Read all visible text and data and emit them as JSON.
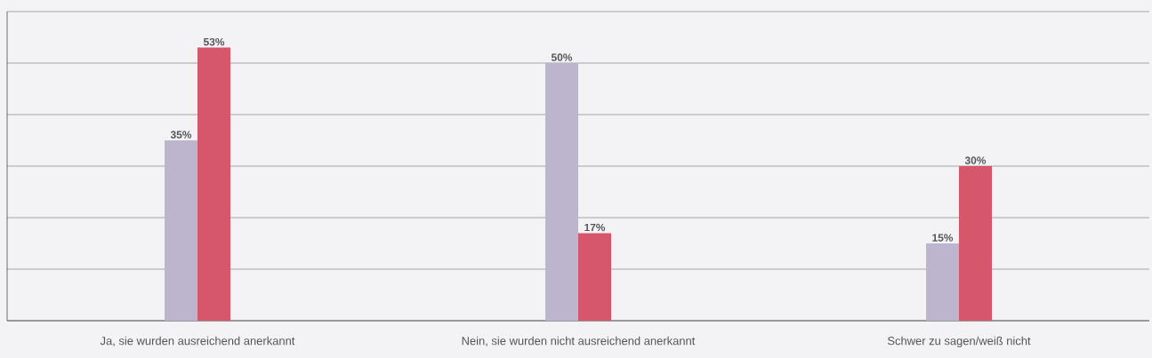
{
  "chart_data": {
    "type": "bar",
    "categories": [
      "Ja, sie wurden ausreichend anerkannt",
      "Nein, sie wurden nicht ausreichend anerkannt",
      "Schwer zu sagen/weiß nicht"
    ],
    "series": [
      {
        "color": "#bdb4cd",
        "values": [
          35,
          50,
          15
        ],
        "value_labels": [
          "35%",
          "50%",
          "15%"
        ]
      },
      {
        "color": "#d6566b",
        "values": [
          53,
          17,
          30
        ],
        "value_labels": [
          "53%",
          "17%",
          "30%"
        ]
      }
    ],
    "ylim": [
      0,
      60
    ],
    "yticks": [
      {
        "value": 0,
        "label": null
      },
      {
        "value": 10,
        "label": null
      },
      {
        "value": 20,
        "label": null
      },
      {
        "value": 30,
        "label": null
      },
      {
        "value": 40,
        "label": null
      },
      {
        "value": 50,
        "label": null
      },
      {
        "value": 60,
        "label": null
      }
    ],
    "grid": "y",
    "tick_labels": "x"
  }
}
